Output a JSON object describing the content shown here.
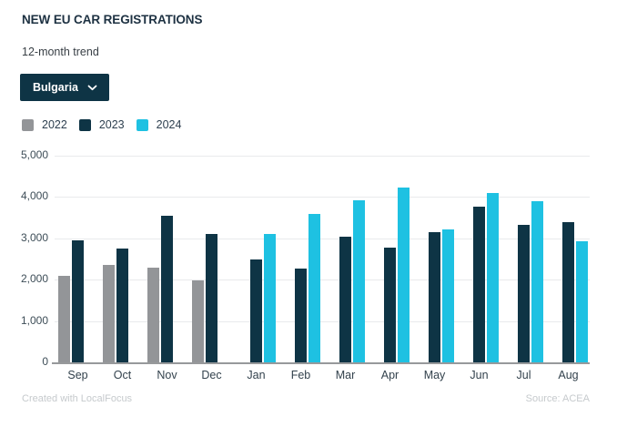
{
  "header": {
    "title": "NEW EU CAR REGISTRATIONS",
    "subtitle": "12-month trend"
  },
  "filter": {
    "country": "Bulgaria"
  },
  "footer": {
    "credit": "Created with LocalFocus",
    "source": "Source: ACEA"
  },
  "chart_data": {
    "type": "bar",
    "title": "NEW EU CAR REGISTRATIONS",
    "subtitle": "12-month trend",
    "categories": [
      "Sep",
      "Oct",
      "Nov",
      "Dec",
      "Jan",
      "Feb",
      "Mar",
      "Apr",
      "May",
      "Jun",
      "Jul",
      "Aug"
    ],
    "series": [
      {
        "name": "2022",
        "color": "#939598",
        "values": [
          2100,
          2350,
          2290,
          1980,
          null,
          null,
          null,
          null,
          null,
          null,
          null,
          null
        ]
      },
      {
        "name": "2023",
        "color": "#0e3445",
        "values": [
          2950,
          2760,
          3550,
          3110,
          2500,
          2260,
          3050,
          2780,
          3140,
          3760,
          3330,
          3400
        ]
      },
      {
        "name": "2024",
        "color": "#1ec1e2",
        "values": [
          null,
          null,
          null,
          null,
          3100,
          3580,
          3920,
          4220,
          3220,
          4090,
          3890,
          2920
        ]
      }
    ],
    "ylim": [
      0,
      5000
    ],
    "yticks": [
      {
        "value": 0,
        "label": "0"
      },
      {
        "value": 1000,
        "label": "1,000"
      },
      {
        "value": 2000,
        "label": "2,000"
      },
      {
        "value": 3000,
        "label": "3,000"
      },
      {
        "value": 4000,
        "label": "4,000"
      },
      {
        "value": 5000,
        "label": "5,000"
      }
    ],
    "grid": true,
    "legend_position": "top-left"
  }
}
